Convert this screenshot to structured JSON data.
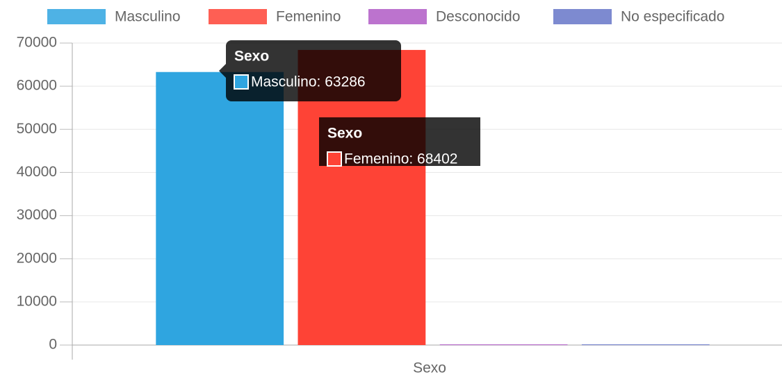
{
  "chart_data": {
    "type": "bar",
    "categories": [
      "Sexo"
    ],
    "series": [
      {
        "name": "Masculino",
        "color": "#2fa5e0",
        "values": [
          63286
        ]
      },
      {
        "name": "Femenino",
        "color": "#fe4336",
        "values": [
          68402
        ]
      },
      {
        "name": "Desconocido",
        "color": "#b05ac6",
        "values": [
          150
        ]
      },
      {
        "name": "No especificado",
        "color": "#6676c8",
        "values": [
          150
        ]
      }
    ],
    "x_label": "Sexo",
    "ylim": [
      0,
      70000
    ],
    "yticks": [
      0,
      10000,
      20000,
      30000,
      40000,
      50000,
      60000,
      70000
    ],
    "grid": true,
    "legend": "top",
    "tooltips": [
      {
        "title": "Sexo",
        "label": "Masculino: 63286"
      },
      {
        "title": "Sexo",
        "label": "Femenino: 68402"
      }
    ]
  }
}
